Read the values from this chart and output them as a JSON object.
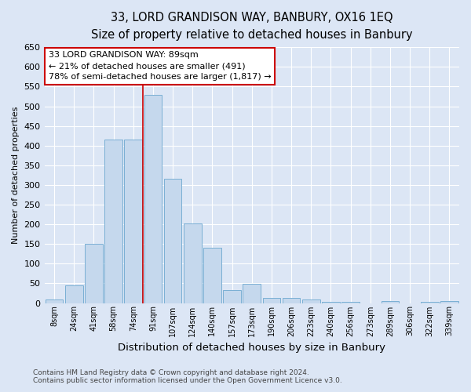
{
  "title": "33, LORD GRANDISON WAY, BANBURY, OX16 1EQ",
  "subtitle": "Size of property relative to detached houses in Banbury",
  "xlabel": "Distribution of detached houses by size in Banbury",
  "ylabel": "Number of detached properties",
  "categories": [
    "8sqm",
    "24sqm",
    "41sqm",
    "58sqm",
    "74sqm",
    "91sqm",
    "107sqm",
    "124sqm",
    "140sqm",
    "157sqm",
    "173sqm",
    "190sqm",
    "206sqm",
    "223sqm",
    "240sqm",
    "256sqm",
    "273sqm",
    "289sqm",
    "306sqm",
    "322sqm",
    "339sqm"
  ],
  "values": [
    8,
    45,
    150,
    415,
    415,
    530,
    315,
    203,
    140,
    33,
    48,
    13,
    12,
    8,
    4,
    3,
    0,
    5,
    0,
    3,
    5
  ],
  "bar_color": "#c5d8ed",
  "bar_edge_color": "#7aafd4",
  "vline_color": "#cc0000",
  "annotation_text": "33 LORD GRANDISON WAY: 89sqm\n← 21% of detached houses are smaller (491)\n78% of semi-detached houses are larger (1,817) →",
  "annotation_box_facecolor": "#ffffff",
  "annotation_box_edgecolor": "#cc0000",
  "ylim": [
    0,
    650
  ],
  "yticks": [
    0,
    50,
    100,
    150,
    200,
    250,
    300,
    350,
    400,
    450,
    500,
    550,
    600,
    650
  ],
  "background_color": "#dce6f5",
  "grid_color": "#ffffff",
  "footer_line1": "Contains HM Land Registry data © Crown copyright and database right 2024.",
  "footer_line2": "Contains public sector information licensed under the Open Government Licence v3.0.",
  "title_fontsize": 10.5,
  "subtitle_fontsize": 9.5,
  "xlabel_fontsize": 9.5,
  "ylabel_fontsize": 8,
  "tick_fontsize": 8,
  "xtick_fontsize": 7
}
